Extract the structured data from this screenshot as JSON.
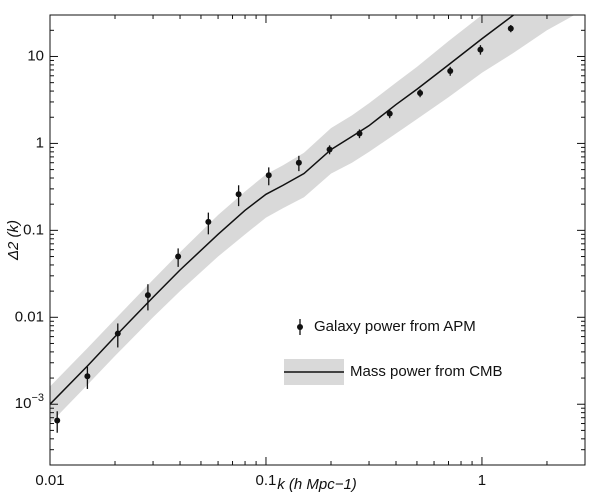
{
  "chart_data": {
    "type": "scatter",
    "x_label": "k (h Mpc−1)",
    "y_label": "Δ2 (k)",
    "xscale": "log",
    "yscale": "log",
    "xlim": [
      0.01,
      3
    ],
    "ylim": [
      0.0002,
      30
    ],
    "xticks": [
      0.01,
      0.1,
      1
    ],
    "yticks": [
      {
        "value": 0.001,
        "label": "10−3"
      },
      0.01,
      0.1,
      1,
      10
    ],
    "legend": "lower right",
    "series": [
      {
        "name": "Galaxy power from APM",
        "type": "scatter",
        "color": "#111111",
        "x": [
          0.0108,
          0.0149,
          0.0206,
          0.0284,
          0.0392,
          0.0541,
          0.0747,
          0.103,
          0.142,
          0.197,
          0.271,
          0.374,
          0.517,
          0.713,
          0.984,
          1.36
        ],
        "values": [
          0.00065,
          0.0021,
          0.0065,
          0.018,
          0.05,
          0.125,
          0.26,
          0.43,
          0.6,
          0.85,
          1.3,
          2.2,
          3.8,
          6.8,
          12,
          21
        ],
        "errors": [
          0.00018,
          0.0006,
          0.002,
          0.006,
          0.012,
          0.035,
          0.07,
          0.1,
          0.12,
          0.1,
          0.15,
          0.25,
          0.4,
          0.8,
          1.5,
          2
        ]
      },
      {
        "name": "Mass power from CMB",
        "type": "line",
        "color": "#111111",
        "band_color": "#d9d9d9",
        "x": [
          0.01,
          0.015,
          0.02,
          0.03,
          0.04,
          0.06,
          0.08,
          0.1,
          0.12,
          0.15,
          0.2,
          0.25,
          0.3,
          0.4,
          0.5,
          0.7,
          1,
          1.4,
          2,
          3
        ],
        "values": [
          0.001,
          0.0028,
          0.006,
          0.017,
          0.035,
          0.09,
          0.17,
          0.26,
          0.33,
          0.45,
          0.85,
          1.2,
          1.6,
          2.8,
          4.2,
          8,
          16,
          30,
          null,
          null
        ],
        "lower": [
          0.0006,
          0.0017,
          0.0036,
          0.01,
          0.02,
          0.05,
          0.09,
          0.14,
          0.18,
          0.24,
          0.45,
          0.6,
          0.8,
          1.3,
          1.9,
          3.4,
          6.5,
          11,
          20,
          35
        ],
        "upper": [
          0.0016,
          0.0045,
          0.0095,
          0.027,
          0.056,
          0.15,
          0.28,
          0.44,
          0.56,
          0.78,
          1.5,
          2.1,
          2.9,
          5,
          7.6,
          15,
          30,
          50,
          70,
          90
        ]
      }
    ]
  }
}
